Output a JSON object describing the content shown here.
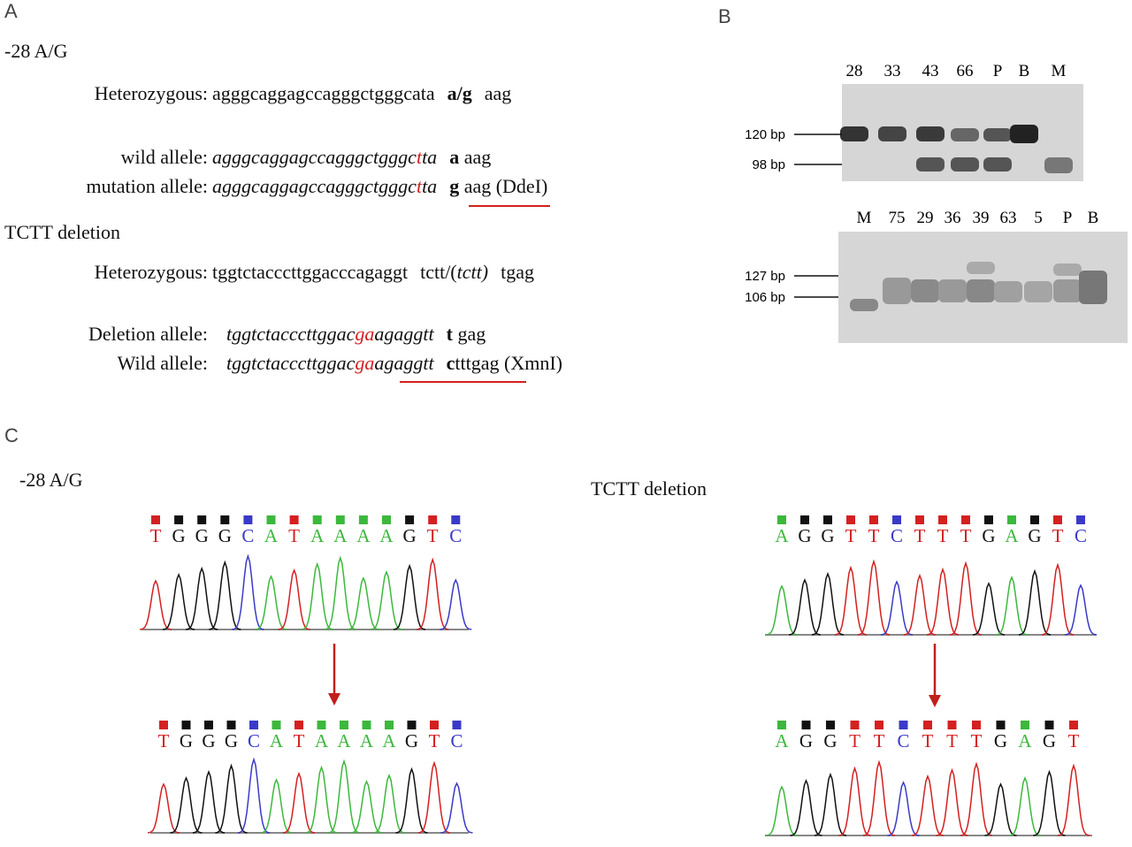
{
  "panel_a": {
    "label": "A",
    "promoter": {
      "title": "-28 A/G",
      "heterozygous": {
        "label": "Heterozygous:",
        "sequence": "agggcaggagccagggctgggcata",
        "variant": "a/g",
        "tail": "aag"
      },
      "wild": {
        "label": "wild allele:",
        "seq_start": "agggcaggagccagggctgggc",
        "highlight": "t",
        "seq_end": "ta",
        "base": "a",
        "tail": "aag"
      },
      "mutation": {
        "label": "mutation allele:",
        "seq_start": "agggcaggagccagggctgggc",
        "highlight": "t",
        "seq_end": "ta",
        "base": "g",
        "tail": "aag (DdeI)"
      }
    },
    "deletion": {
      "title": "TCTT deletion",
      "heterozygous": {
        "label": "Heterozygous:",
        "sequence": "tggtctacccttggacccagaggt",
        "variant": "tctt/(",
        "variant_italic": "tctt)",
        "tail": "tgag"
      },
      "deletion_allele": {
        "label": "Deletion allele:",
        "seq_start": "tggtctacccttggac",
        "highlight": "ga",
        "seq_end": "agaggtt",
        "base": "t",
        "tail": "gag"
      },
      "wild": {
        "label": "Wild allele:",
        "seq_start": "tggtctacccttggac",
        "highlight": "ga",
        "seq_end": "agaggtt",
        "base": "c",
        "tail": "tttgag (XmnI)"
      }
    }
  },
  "panel_b": {
    "label": "B",
    "gel_top": {
      "lanes": [
        "28",
        "33",
        "43",
        "66",
        "P",
        "B",
        "M"
      ],
      "markers": [
        "120 bp",
        "98 bp"
      ]
    },
    "gel_bottom": {
      "lanes": [
        "M",
        "75",
        "29",
        "36",
        "39",
        "63",
        "5",
        "P",
        "B"
      ],
      "markers": [
        "127 bp",
        "106 bp"
      ]
    }
  },
  "panel_c": {
    "label": "C",
    "promoter": {
      "title": "-28 A/G",
      "before": [
        "T",
        "G",
        "G",
        "G",
        "C",
        "A",
        "T",
        "A",
        "A",
        "A",
        "A",
        "G",
        "T",
        "C"
      ],
      "after": [
        "T",
        "G",
        "G",
        "G",
        "C",
        "A",
        "T",
        "A",
        "A",
        "A",
        "A",
        "G",
        "T",
        "C"
      ]
    },
    "deletion": {
      "title": "TCTT deletion",
      "before": [
        "A",
        "G",
        "G",
        "T",
        "T",
        "C",
        "T",
        "T",
        "T",
        "G",
        "A",
        "G",
        "T",
        "C"
      ],
      "after": [
        "A",
        "G",
        "G",
        "T",
        "T",
        "C",
        "T",
        "T",
        "T",
        "G",
        "A",
        "G",
        "T"
      ]
    }
  }
}
